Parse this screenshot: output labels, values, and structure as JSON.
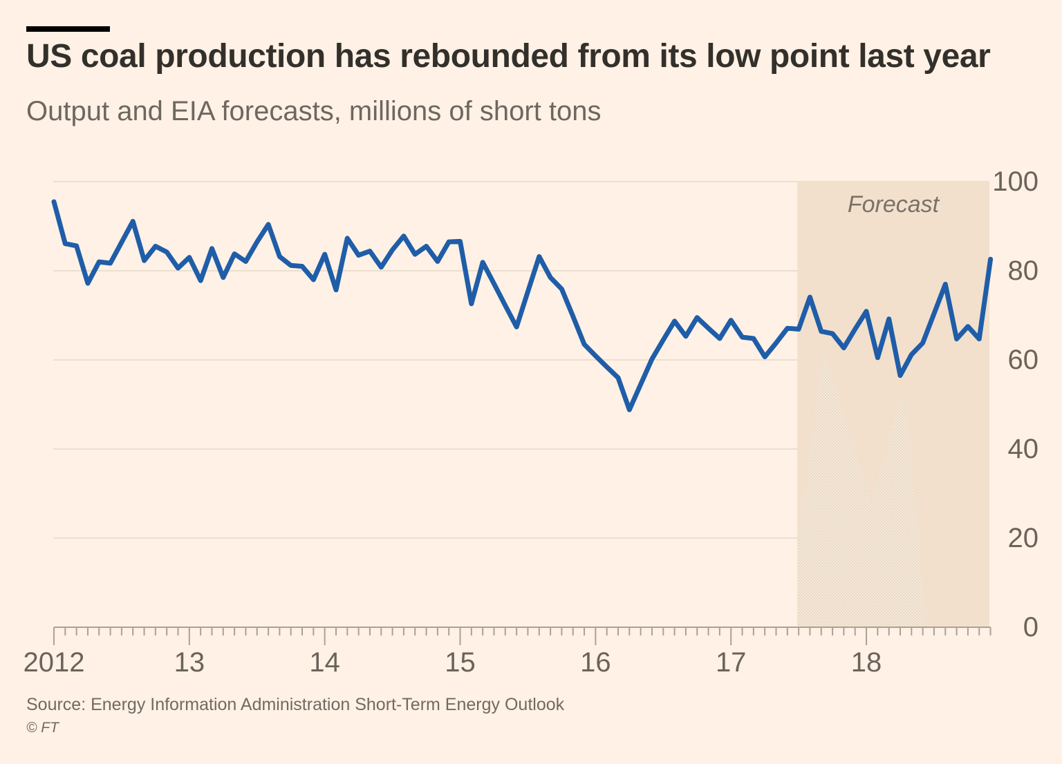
{
  "chart_data": {
    "type": "line",
    "title": "US coal production has rebounded from its low point last year",
    "subtitle": "Output and EIA forecasts, millions of short tons",
    "source": "Source: Energy Information Administration Short-Term Energy Outlook",
    "copyright": "© FT",
    "forecast_label": "Forecast",
    "x_unit": "month",
    "x_start": "2012-01",
    "x_tick_labels": [
      "2012",
      "13",
      "14",
      "15",
      "16",
      "17",
      "18"
    ],
    "y_tick_values": [
      100,
      80,
      60,
      40,
      20,
      0
    ],
    "ylim": [
      0,
      100
    ],
    "grid": true,
    "series": [
      {
        "name": "US coal production, output and EIA forecast (millions of short tons, monthly)",
        "values": [
          95.5,
          86.1,
          85.6,
          77.2,
          82.0,
          81.7,
          86.4,
          91.1,
          82.3,
          85.5,
          84.2,
          80.6,
          83.0,
          77.8,
          85.0,
          78.5,
          83.8,
          82.1,
          86.5,
          90.4,
          83.2,
          81.2,
          81.0,
          78.0,
          83.7,
          75.7,
          87.3,
          83.5,
          84.4,
          80.8,
          84.7,
          87.8,
          83.7,
          85.5,
          82.1,
          86.5,
          86.6,
          72.6,
          81.9,
          77.1,
          72.2,
          67.4,
          75.3,
          83.2,
          78.5,
          75.9,
          69.8,
          63.5,
          60.9,
          58.4,
          56.0,
          48.8,
          54.5,
          60.2,
          64.5,
          68.7,
          65.3,
          69.5,
          67.1,
          64.8,
          68.9,
          65.1,
          64.8,
          60.7,
          63.8,
          67.1,
          66.9,
          74.1,
          66.4,
          65.9,
          62.7,
          66.9,
          70.9,
          60.5,
          69.2,
          56.5,
          61.2,
          63.8,
          70.4,
          77.0,
          64.7,
          67.5,
          64.7,
          82.6
        ]
      }
    ],
    "forecast_start_index": 66,
    "forecast_note": "Forecast region covers Jul 2017 through Dec 2018",
    "secondary_area": {
      "name": "faint seasonal area inside forecast band",
      "points_index_value": [
        [
          66,
          20
        ],
        [
          68.2,
          62.5
        ],
        [
          72.4,
          27.5
        ],
        [
          75.3,
          53.5
        ],
        [
          77.3,
          1
        ],
        [
          77.3,
          0
        ],
        [
          66,
          0
        ]
      ]
    },
    "colors": {
      "background": "#fff1e5",
      "line": "#1f5da8",
      "forecast_band": "#f2e0cd",
      "secondary_area_fill": "#f7ead9",
      "grid": "#ebdfcf",
      "axis": "#aba197",
      "title_text": "#33302c",
      "muted_text": "#6e6760",
      "forecast_label_text": "#7a7168"
    }
  }
}
